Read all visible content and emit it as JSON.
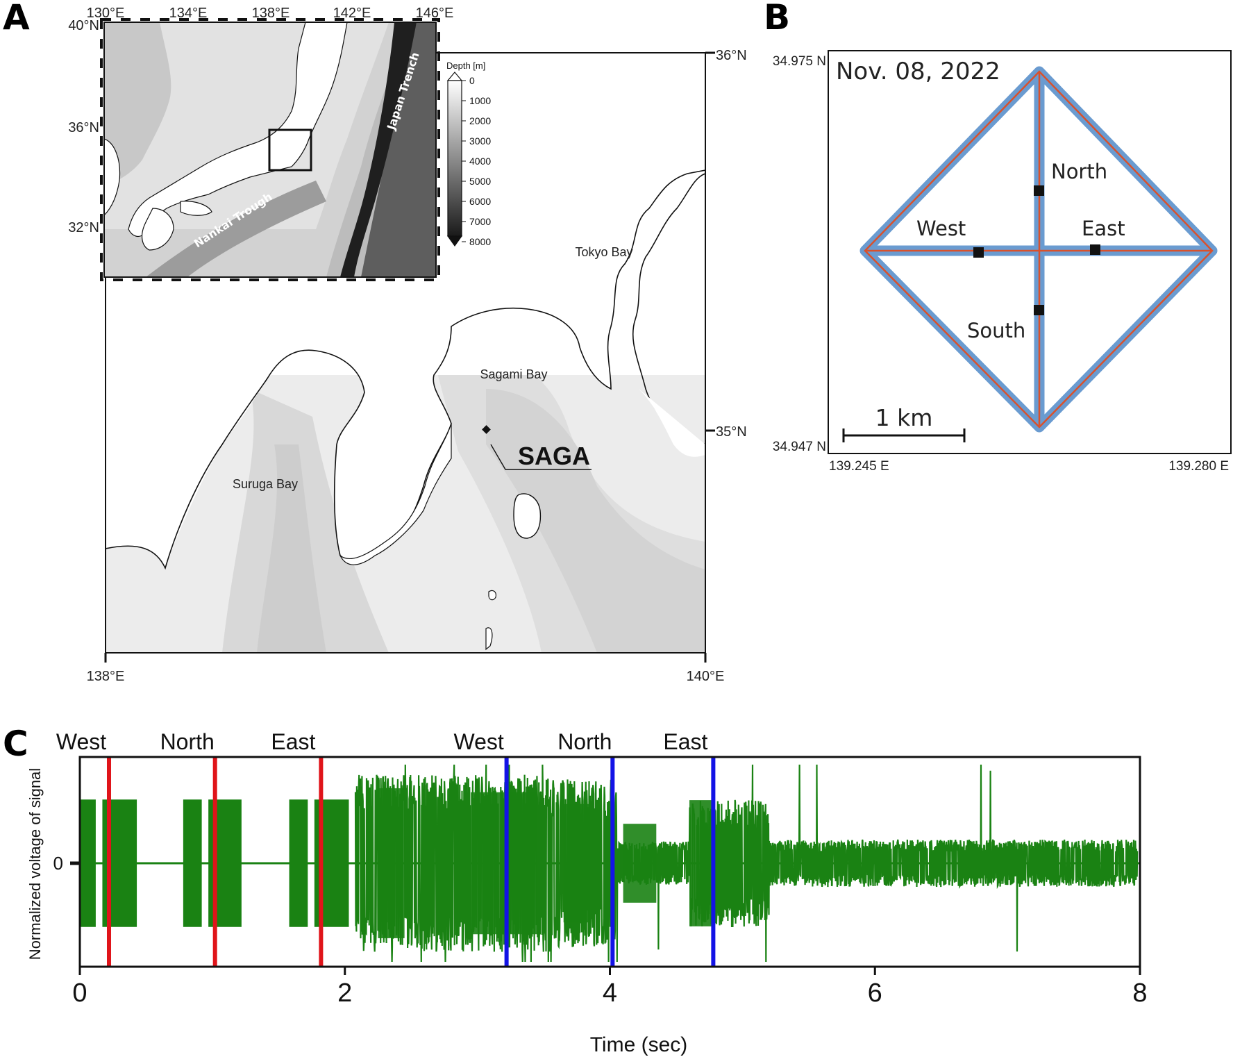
{
  "panels": {
    "a": {
      "letter": "A",
      "inset": {
        "lon_ticks": [
          "130°E",
          "134°E",
          "138°E",
          "142°E",
          "146°E"
        ],
        "lat_ticks": [
          "40°N",
          "36°N",
          "32°N"
        ],
        "labels": [
          "Japan Trench",
          "Nankai Trough"
        ],
        "legend_title": "Depth [m]",
        "legend_values": [
          "0",
          "1000",
          "2000",
          "3000",
          "4000",
          "5000",
          "6000",
          "7000",
          "8000"
        ]
      },
      "main": {
        "lon_ticks": [
          "138°E",
          "140°E"
        ],
        "lat_ticks": [
          "36°N",
          "35°N"
        ],
        "places": [
          "Tokyo Bay",
          "Sagami Bay",
          "Suruga Bay"
        ],
        "station": "SAGA"
      }
    },
    "b": {
      "letter": "B",
      "date": "Nov. 08, 2022",
      "lat_top": "34.975 N",
      "lat_bottom": "34.947 N",
      "lon_left": "139.245 E",
      "lon_right": "139.280 E",
      "scale_bar": "1 km",
      "stations": [
        "North",
        "West",
        "East",
        "South"
      ],
      "colors": {
        "track": "#6a9bd0",
        "route": "#d9512c"
      }
    },
    "c": {
      "letter": "C",
      "ylabel": "Normalized voltage of signal",
      "xlabel": "Time (sec)",
      "colors": {
        "signal": "#1a8213",
        "first_pass": "#e0141a",
        "second_pass": "#1313e6"
      }
    }
  },
  "chart_data": {
    "type": "line",
    "title": "",
    "xlabel": "Time (sec)",
    "ylabel": "Normalized voltage of signal",
    "xlim": [
      0,
      8
    ],
    "x_ticks": [
      0,
      2,
      4,
      6,
      8
    ],
    "y_ticks": [
      0
    ],
    "grid": false,
    "markers": [
      {
        "label": "West",
        "x": 0.22,
        "color": "#e0141a"
      },
      {
        "label": "North",
        "x": 1.02,
        "color": "#e0141a"
      },
      {
        "label": "East",
        "x": 1.82,
        "color": "#e0141a"
      },
      {
        "label": "West",
        "x": 3.22,
        "color": "#1313e6"
      },
      {
        "label": "North",
        "x": 4.02,
        "color": "#1313e6"
      },
      {
        "label": "East",
        "x": 4.78,
        "color": "#1313e6"
      }
    ],
    "bursts": [
      {
        "start": 0.0,
        "end": 0.12,
        "amplitude": 0.95
      },
      {
        "start": 0.17,
        "end": 0.43,
        "amplitude": 0.95
      },
      {
        "start": 0.78,
        "end": 0.92,
        "amplitude": 0.95
      },
      {
        "start": 0.97,
        "end": 1.22,
        "amplitude": 0.95
      },
      {
        "start": 1.58,
        "end": 1.72,
        "amplitude": 0.95
      },
      {
        "start": 1.77,
        "end": 2.03,
        "amplitude": 0.95
      }
    ]
  }
}
